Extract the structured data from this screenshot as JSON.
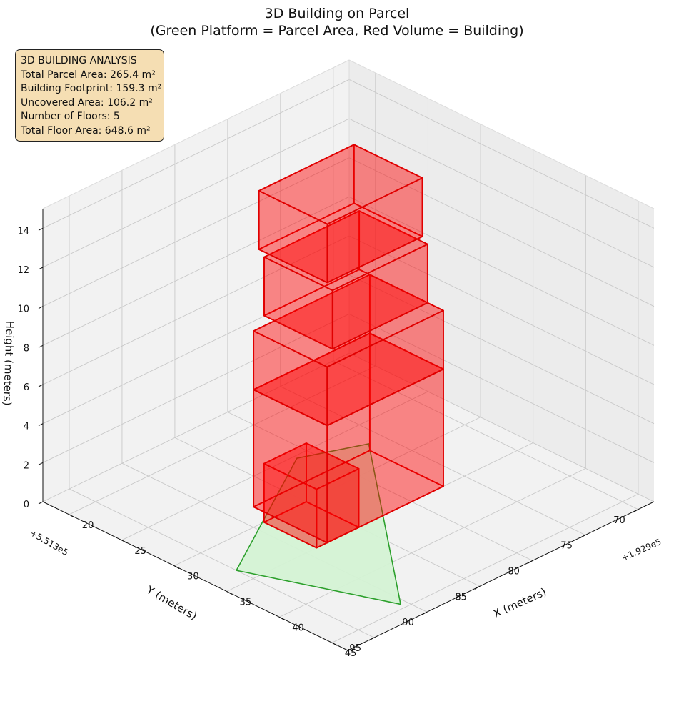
{
  "chart_data": {
    "type": "3d-box",
    "title": "3D Building on Parcel",
    "subtitle": "(Green Platform = Parcel Area, Red Volume = Building)",
    "xlabel": "X (meters)",
    "ylabel": "Y (meters)",
    "zlabel": "Height (meters)",
    "x_offset": "+1.929e5",
    "y_offset": "+5.513e5",
    "x_ticks": [
      "20",
      "25",
      "30",
      "35",
      "40",
      "45"
    ],
    "y_ticks": [
      "70",
      "75",
      "80",
      "85",
      "90",
      "95"
    ],
    "z_ticks": [
      "0",
      "2",
      "4",
      "6",
      "8",
      "10",
      "12",
      "14"
    ],
    "xlim": [
      17.5,
      46.5
    ],
    "ylim": [
      68.5,
      97.5
    ],
    "zlim": [
      0,
      15
    ],
    "grid": true,
    "colors": {
      "parcel_fill": "#d4f2d4",
      "parcel_edge": "#2ca02c",
      "building_edge": "#e00000",
      "building_fill": "#ff0000"
    },
    "parcel": {
      "corners": [
        [
          27.3,
          76.4
        ],
        [
          44.5,
          90.5
        ],
        [
          33.4,
          95.0
        ],
        [
          25.3,
          81.2
        ]
      ],
      "z": 0
    },
    "building_boxes": [
      {
        "x": [
          30.0,
          35.0
        ],
        "y": [
          85.0,
          89.0
        ],
        "z": [
          0,
          3
        ]
      },
      {
        "x": [
          28.0,
          35.0
        ],
        "y": [
          77.0,
          88.0
        ],
        "z": [
          0,
          6
        ]
      },
      {
        "x": [
          28.0,
          35.0
        ],
        "y": [
          77.0,
          88.0
        ],
        "z": [
          6,
          9
        ]
      },
      {
        "x": [
          27.0,
          33.5
        ],
        "y": [
          77.0,
          86.0
        ],
        "z": [
          9,
          12
        ]
      },
      {
        "x": [
          26.0,
          32.5
        ],
        "y": [
          76.5,
          85.5
        ],
        "z": [
          12,
          15
        ]
      }
    ]
  },
  "analysis": {
    "heading": "3D BUILDING ANALYSIS",
    "total_parcel_area": "Total Parcel Area: 265.4 m²",
    "building_footprint": "Building Footprint: 159.3 m²",
    "uncovered_area": "Uncovered Area: 106.2 m²",
    "floors": "Number of Floors: 5",
    "total_floor_area": "Total Floor Area: 648.6 m²"
  }
}
